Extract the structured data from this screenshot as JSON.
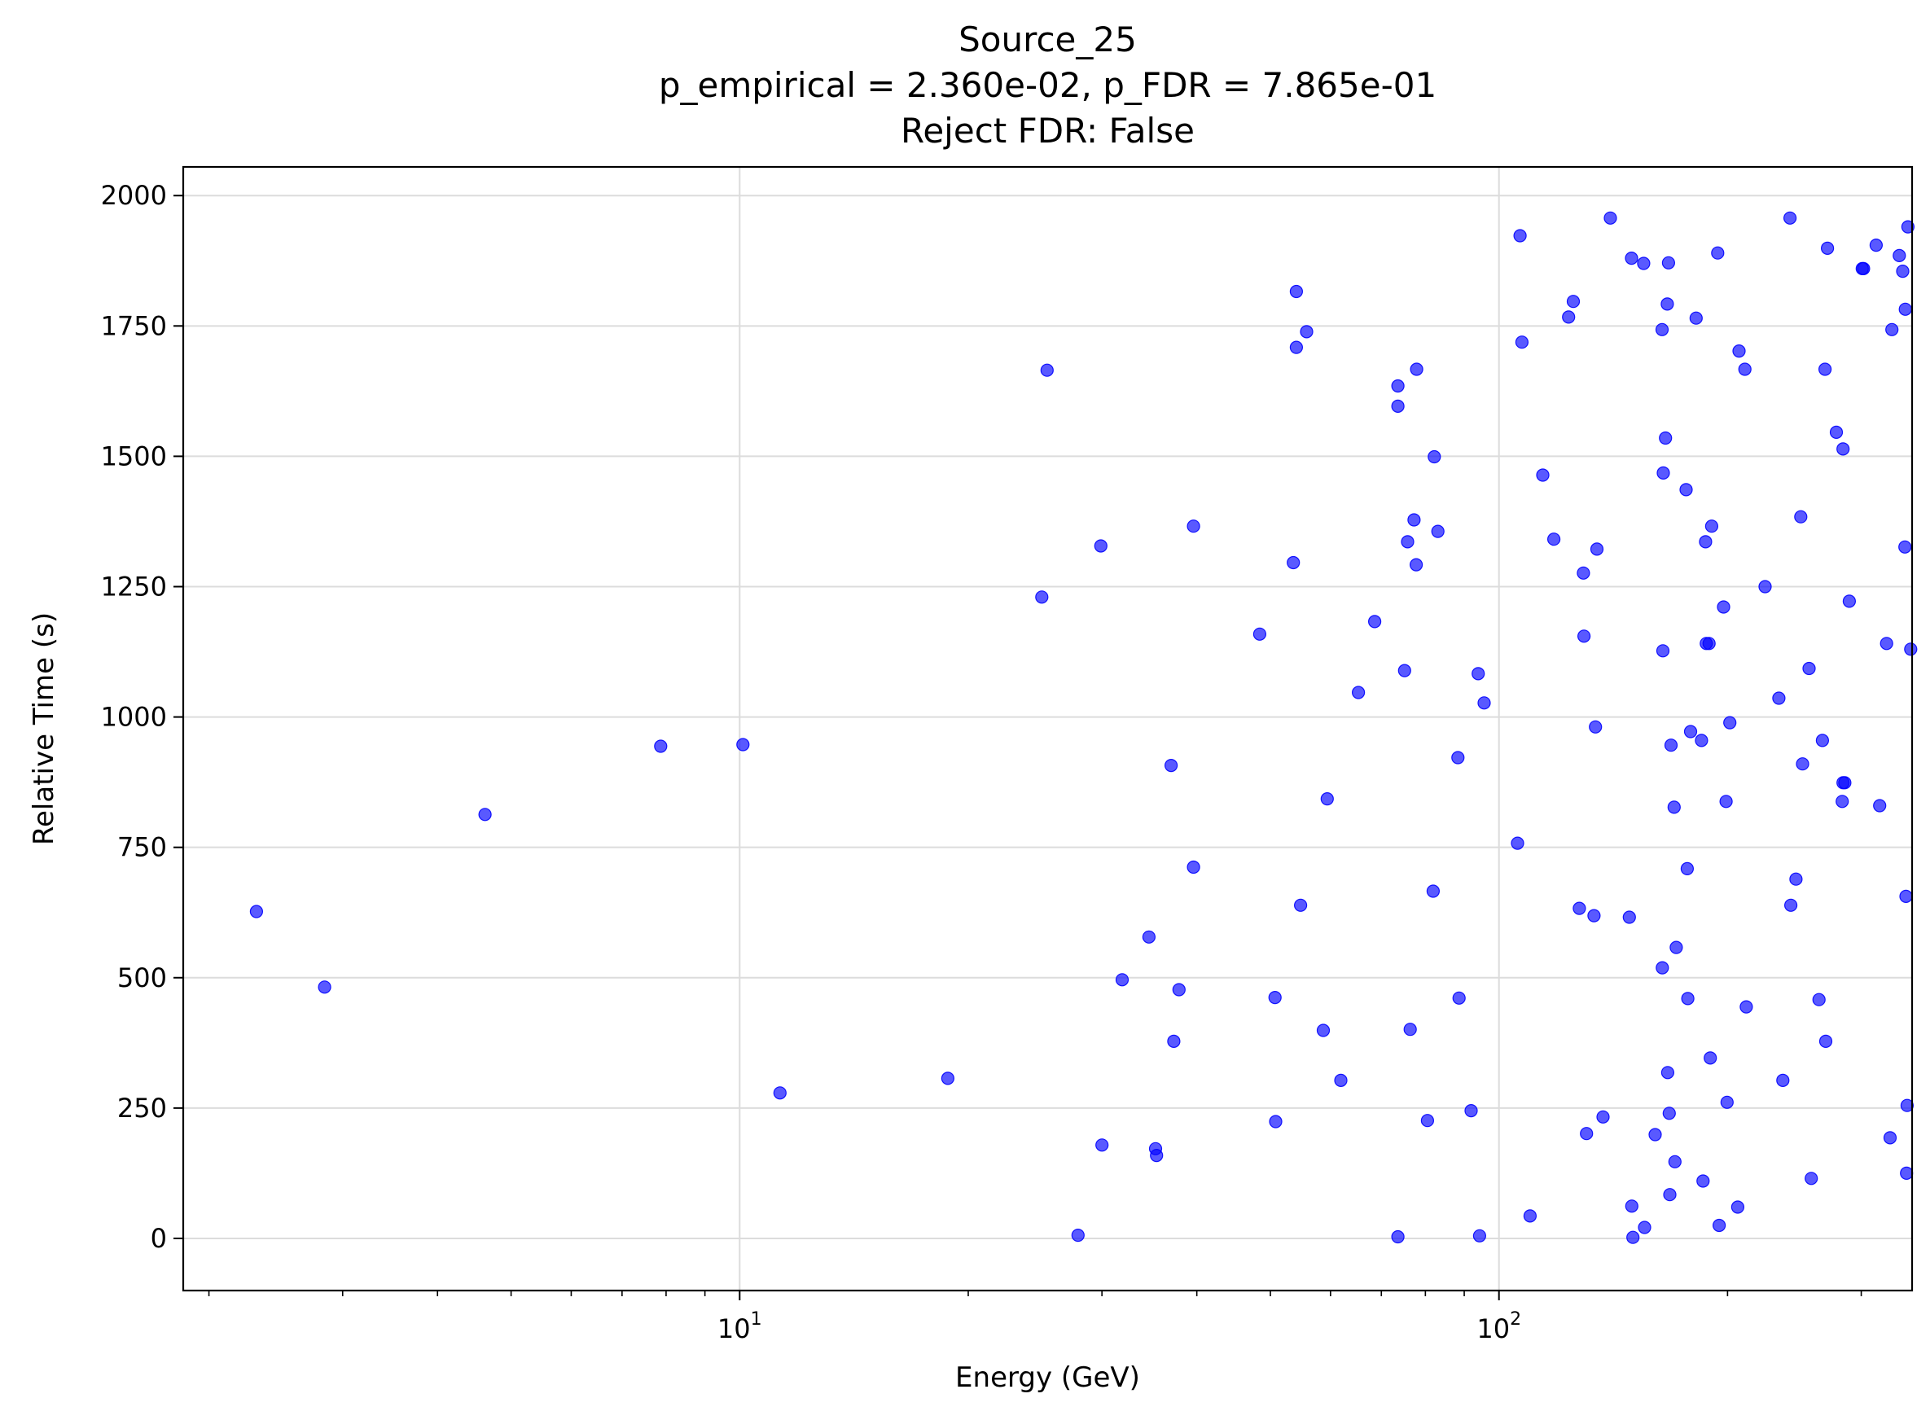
{
  "chart_data": {
    "type": "scatter",
    "title_lines": [
      "Source_25",
      "p_empirical = 2.360e-02, p_FDR = 7.865e-01",
      "Reject FDR: False"
    ],
    "xlabel": "Energy (GeV)",
    "ylabel": "Relative Time (s)",
    "x_scale": "log",
    "xlim": [
      1.85,
      350
    ],
    "ylim": [
      -100,
      2055
    ],
    "x_ticks": [
      {
        "value": 10,
        "base": "10",
        "exp": "1"
      },
      {
        "value": 100,
        "base": "10",
        "exp": "2"
      }
    ],
    "x_minor_ticks": [
      2,
      3,
      4,
      5,
      6,
      7,
      8,
      9,
      20,
      30,
      40,
      50,
      60,
      70,
      80,
      90,
      200,
      300
    ],
    "y_ticks": [
      0,
      250,
      500,
      750,
      1000,
      1250,
      1500,
      1750,
      2000
    ],
    "grid": true,
    "marker_color": "#0000ff",
    "marker_opacity": 0.65,
    "points": [
      [
        2.31,
        627
      ],
      [
        2.84,
        482
      ],
      [
        4.62,
        813
      ],
      [
        7.87,
        944
      ],
      [
        10.1,
        947
      ],
      [
        11.3,
        279
      ],
      [
        18.8,
        307
      ],
      [
        25.0,
        1230
      ],
      [
        25.4,
        1665
      ],
      [
        27.9,
        6
      ],
      [
        29.9,
        1328
      ],
      [
        30.0,
        179
      ],
      [
        31.9,
        496
      ],
      [
        34.6,
        578
      ],
      [
        35.3,
        172
      ],
      [
        35.4,
        159
      ],
      [
        37.0,
        907
      ],
      [
        37.3,
        378
      ],
      [
        37.9,
        477
      ],
      [
        39.6,
        1366
      ],
      [
        39.6,
        712
      ],
      [
        48.4,
        1159
      ],
      [
        50.7,
        462
      ],
      [
        50.8,
        224
      ],
      [
        53.6,
        1296
      ],
      [
        54.1,
        1816
      ],
      [
        54.1,
        1709
      ],
      [
        54.8,
        639
      ],
      [
        55.8,
        1739
      ],
      [
        58.7,
        399
      ],
      [
        59.4,
        843
      ],
      [
        61.9,
        303
      ],
      [
        65.3,
        1047
      ],
      [
        68.6,
        1183
      ],
      [
        73.6,
        1635
      ],
      [
        73.6,
        1596
      ],
      [
        73.6,
        3
      ],
      [
        75.1,
        1089
      ],
      [
        75.8,
        1336
      ],
      [
        76.4,
        401
      ],
      [
        77.3,
        1378
      ],
      [
        77.8,
        1292
      ],
      [
        77.9,
        1667
      ],
      [
        80.5,
        226
      ],
      [
        81.9,
        666
      ],
      [
        82.2,
        1499
      ],
      [
        83.1,
        1356
      ],
      [
        88.3,
        922
      ],
      [
        88.6,
        461
      ],
      [
        91.9,
        245
      ],
      [
        93.9,
        1083
      ],
      [
        94.3,
        5
      ],
      [
        95.6,
        1027
      ],
      [
        105.8,
        758
      ],
      [
        106.6,
        1923
      ],
      [
        107.2,
        1719
      ],
      [
        109.9,
        43
      ],
      [
        114.2,
        1464
      ],
      [
        118.1,
        1341
      ],
      [
        123.5,
        1767
      ],
      [
        125.3,
        1797
      ],
      [
        127.6,
        633
      ],
      [
        129.2,
        1276
      ],
      [
        129.4,
        1155
      ],
      [
        130.4,
        201
      ],
      [
        133.4,
        619
      ],
      [
        134.0,
        981
      ],
      [
        134.6,
        1322
      ],
      [
        137.1,
        233
      ],
      [
        140.2,
        1957
      ],
      [
        148.5,
        616
      ],
      [
        149.5,
        1880
      ],
      [
        149.6,
        62
      ],
      [
        150.1,
        2
      ],
      [
        155.1,
        1870
      ],
      [
        155.5,
        21
      ],
      [
        160.6,
        199
      ],
      [
        164.0,
        1743
      ],
      [
        164.1,
        519
      ],
      [
        164.4,
        1127
      ],
      [
        164.6,
        1468
      ],
      [
        165.7,
        1535
      ],
      [
        166.6,
        1792
      ],
      [
        166.8,
        318
      ],
      [
        167.2,
        1871
      ],
      [
        167.6,
        240
      ],
      [
        167.9,
        84
      ],
      [
        168.5,
        946
      ],
      [
        170.1,
        827
      ],
      [
        170.5,
        147
      ],
      [
        171.2,
        558
      ],
      [
        176.4,
        1436
      ],
      [
        177.0,
        709
      ],
      [
        177.3,
        460
      ],
      [
        178.8,
        972
      ],
      [
        181.8,
        1765
      ],
      [
        184.8,
        955
      ],
      [
        185.7,
        110
      ],
      [
        187.1,
        1336
      ],
      [
        187.5,
        1141
      ],
      [
        189.1,
        1141
      ],
      [
        189.8,
        346
      ],
      [
        190.6,
        1366
      ],
      [
        194.1,
        1890
      ],
      [
        195.0,
        25
      ],
      [
        197.6,
        1211
      ],
      [
        199.1,
        838
      ],
      [
        199.7,
        261
      ],
      [
        201.4,
        989
      ],
      [
        206.3,
        60
      ],
      [
        207.1,
        1702
      ],
      [
        210.8,
        1667
      ],
      [
        211.7,
        444
      ],
      [
        224.1,
        1250
      ],
      [
        233.7,
        1036
      ],
      [
        236.5,
        303
      ],
      [
        241.7,
        1957
      ],
      [
        242.3,
        639
      ],
      [
        246.1,
        689
      ],
      [
        249.7,
        1384
      ],
      [
        251.1,
        910
      ],
      [
        256.1,
        1093
      ],
      [
        257.8,
        115
      ],
      [
        263.9,
        458
      ],
      [
        266.7,
        955
      ],
      [
        268.8,
        1667
      ],
      [
        269.4,
        378
      ],
      [
        270.8,
        1899
      ],
      [
        278.2,
        1546
      ],
      [
        283.2,
        838
      ],
      [
        283.9,
        1514
      ],
      [
        283.9,
        874
      ],
      [
        285.4,
        874
      ],
      [
        289.3,
        1222
      ],
      [
        300.9,
        1860
      ],
      [
        302.1,
        1860
      ],
      [
        313.9,
        1905
      ],
      [
        317.2,
        830
      ],
      [
        324.0,
        1141
      ],
      [
        327.4,
        193
      ],
      [
        329.2,
        1743
      ],
      [
        336.7,
        1885
      ],
      [
        340.2,
        1855
      ],
      [
        342.5,
        1326
      ],
      [
        342.9,
        1782
      ],
      [
        343.6,
        656
      ],
      [
        344.2,
        125
      ],
      [
        344.8,
        255
      ],
      [
        345.6,
        1940
      ],
      [
        348.5,
        1130
      ]
    ]
  }
}
